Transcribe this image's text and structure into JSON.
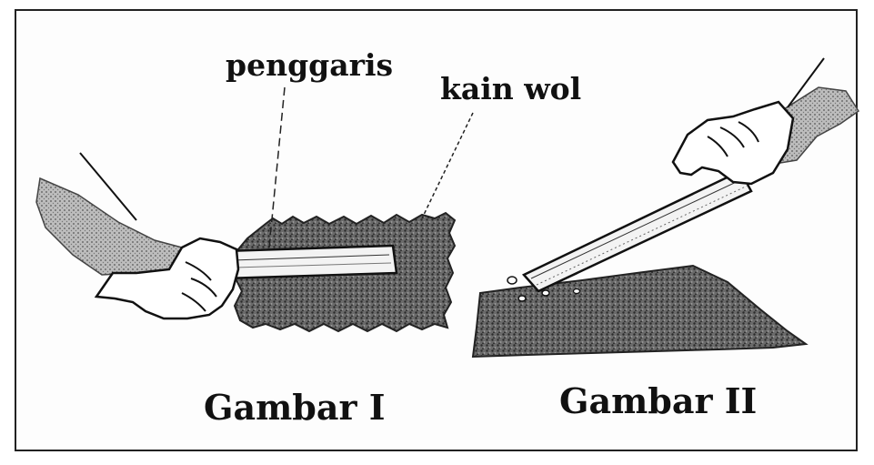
{
  "labels": {
    "ruler": "penggaris",
    "wool_cloth": "kain wol"
  },
  "captions": {
    "figure_1": "Gambar I",
    "figure_2": "Gambar II"
  },
  "colors": {
    "ink": "#111111",
    "cloth": "#4a4a4a",
    "paper": "#fdfdfd"
  }
}
